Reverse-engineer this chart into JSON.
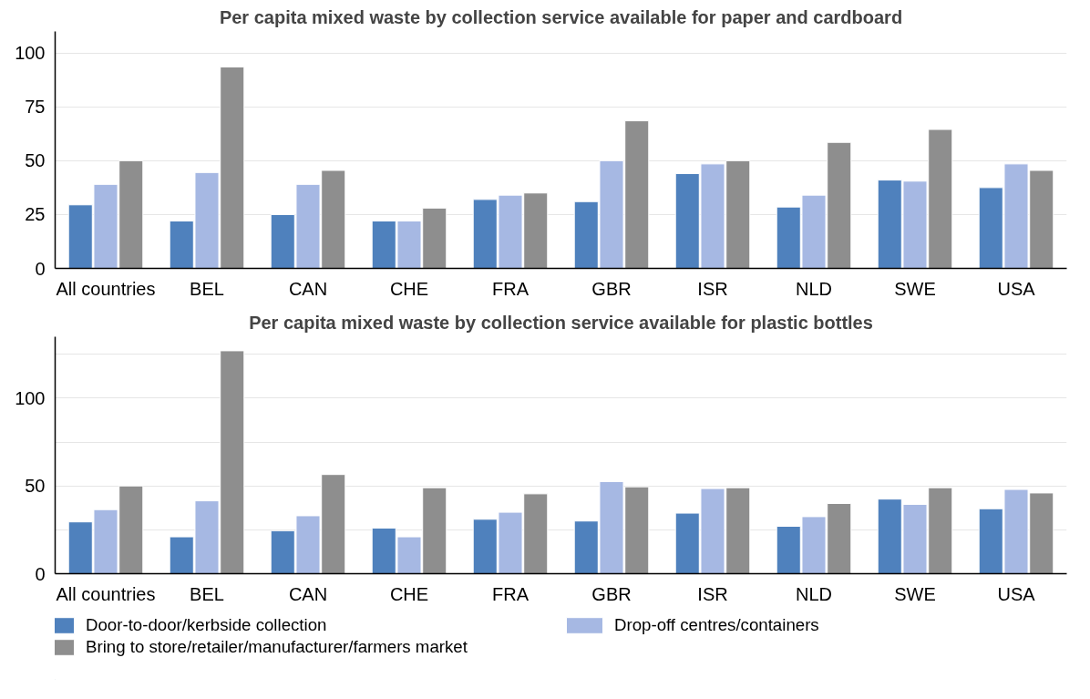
{
  "chart_data": [
    {
      "type": "bar",
      "title": "Per capita mixed waste by collection service available for paper and cardboard",
      "categories": [
        "All countries",
        "BEL",
        "CAN",
        "CHE",
        "FRA",
        "GBR",
        "ISR",
        "NLD",
        "SWE",
        "USA"
      ],
      "series": [
        {
          "color": "#4f81bd",
          "values": [
            29.5,
            22,
            25,
            22,
            32,
            31,
            44,
            28.5,
            41,
            37.5
          ]
        },
        {
          "color": "#a6b8e3",
          "values": [
            39,
            44.5,
            39,
            22,
            34,
            50,
            48.5,
            34,
            40.5,
            48.5
          ]
        },
        {
          "color": "#8e8e8e",
          "values": [
            50,
            93.5,
            45.5,
            28,
            35,
            68.5,
            50,
            58.5,
            64.5,
            45.5
          ]
        }
      ],
      "ylim": [
        0,
        110
      ],
      "yticks": [
        0,
        25,
        50,
        75,
        100
      ],
      "grid": "y",
      "legend": false
    },
    {
      "type": "bar",
      "title": "Per capita mixed waste by collection service available for plastic bottles",
      "categories": [
        "All countries",
        "BEL",
        "CAN",
        "CHE",
        "FRA",
        "GBR",
        "ISR",
        "NLD",
        "SWE",
        "USA"
      ],
      "series": [
        {
          "name": "Door-to-door/kerbside collection",
          "color": "#4f81bd",
          "values": [
            29.5,
            21,
            24.5,
            26,
            31,
            30,
            34.5,
            27,
            42.5,
            37
          ]
        },
        {
          "name": "Drop-off centres/containers",
          "color": "#a6b8e3",
          "values": [
            36.5,
            41.5,
            33,
            21,
            35,
            52.5,
            48.5,
            32.5,
            39.5,
            48
          ]
        },
        {
          "name": "Bring to store/retailer/manufacturer/farmers market",
          "color": "#8e8e8e",
          "values": [
            50,
            127,
            56.5,
            49,
            45.5,
            49.5,
            49,
            40,
            49,
            46
          ]
        }
      ],
      "ylim": [
        0,
        135
      ],
      "yticks": [
        0,
        {
          "value": 25,
          "label": null
        },
        50,
        {
          "value": 75,
          "label": null
        },
        100,
        {
          "value": 125,
          "label": null
        }
      ],
      "grid": "y",
      "legend": "bottom"
    }
  ]
}
